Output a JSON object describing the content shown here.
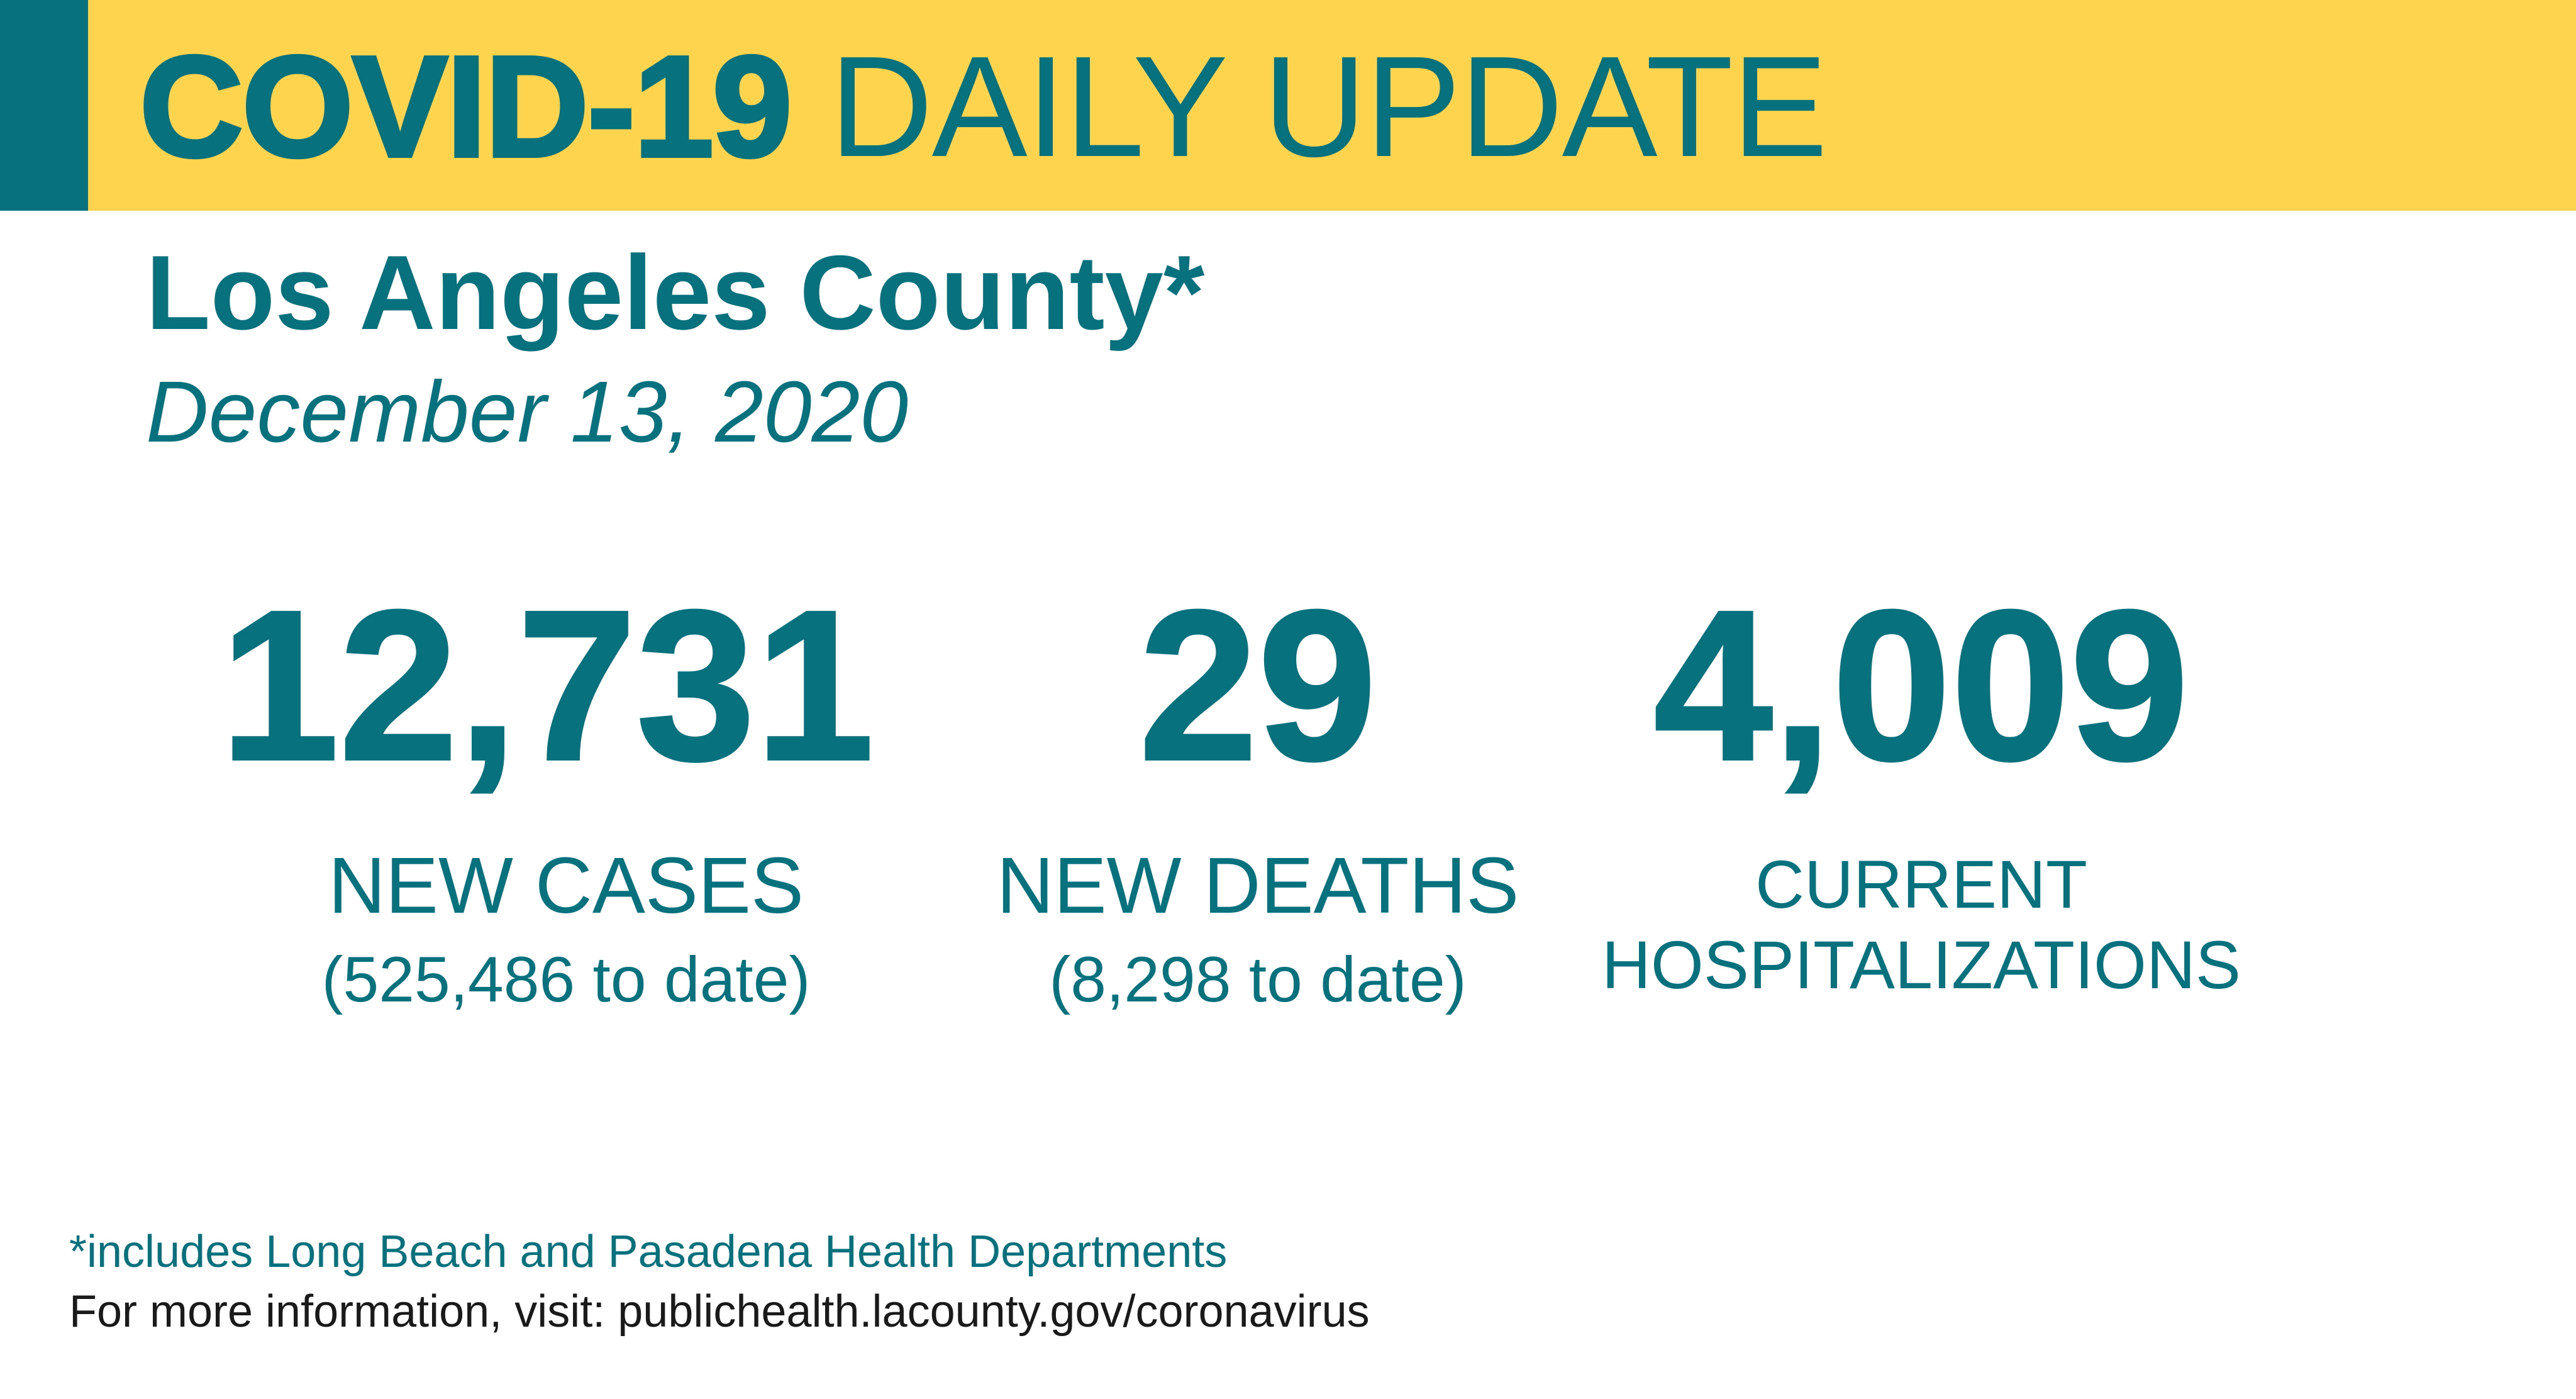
{
  "banner": {
    "title_bold": "COVID-19",
    "title_light": "DAILY UPDATE"
  },
  "header": {
    "county": "Los Angeles County*",
    "date": "December 13, 2020"
  },
  "stats": {
    "cases": {
      "value": "12,731",
      "label": "NEW CASES",
      "to_date": "(525,486 to date)"
    },
    "deaths": {
      "value": "29",
      "label": "NEW DEATHS",
      "to_date": "(8,298 to date)"
    },
    "hospitalizations": {
      "value": "4,009",
      "label_line1": "CURRENT",
      "label_line2": "HOSPITALIZATIONS"
    }
  },
  "footer": {
    "footnote": "*includes Long Beach and Pasadena Health Departments",
    "more_info": "For more information, visit: publichealth.lacounty.gov/coronavirus"
  },
  "colors": {
    "teal": "#08717e",
    "yellow": "#fed44e",
    "text_dark": "#1a1a1a"
  }
}
